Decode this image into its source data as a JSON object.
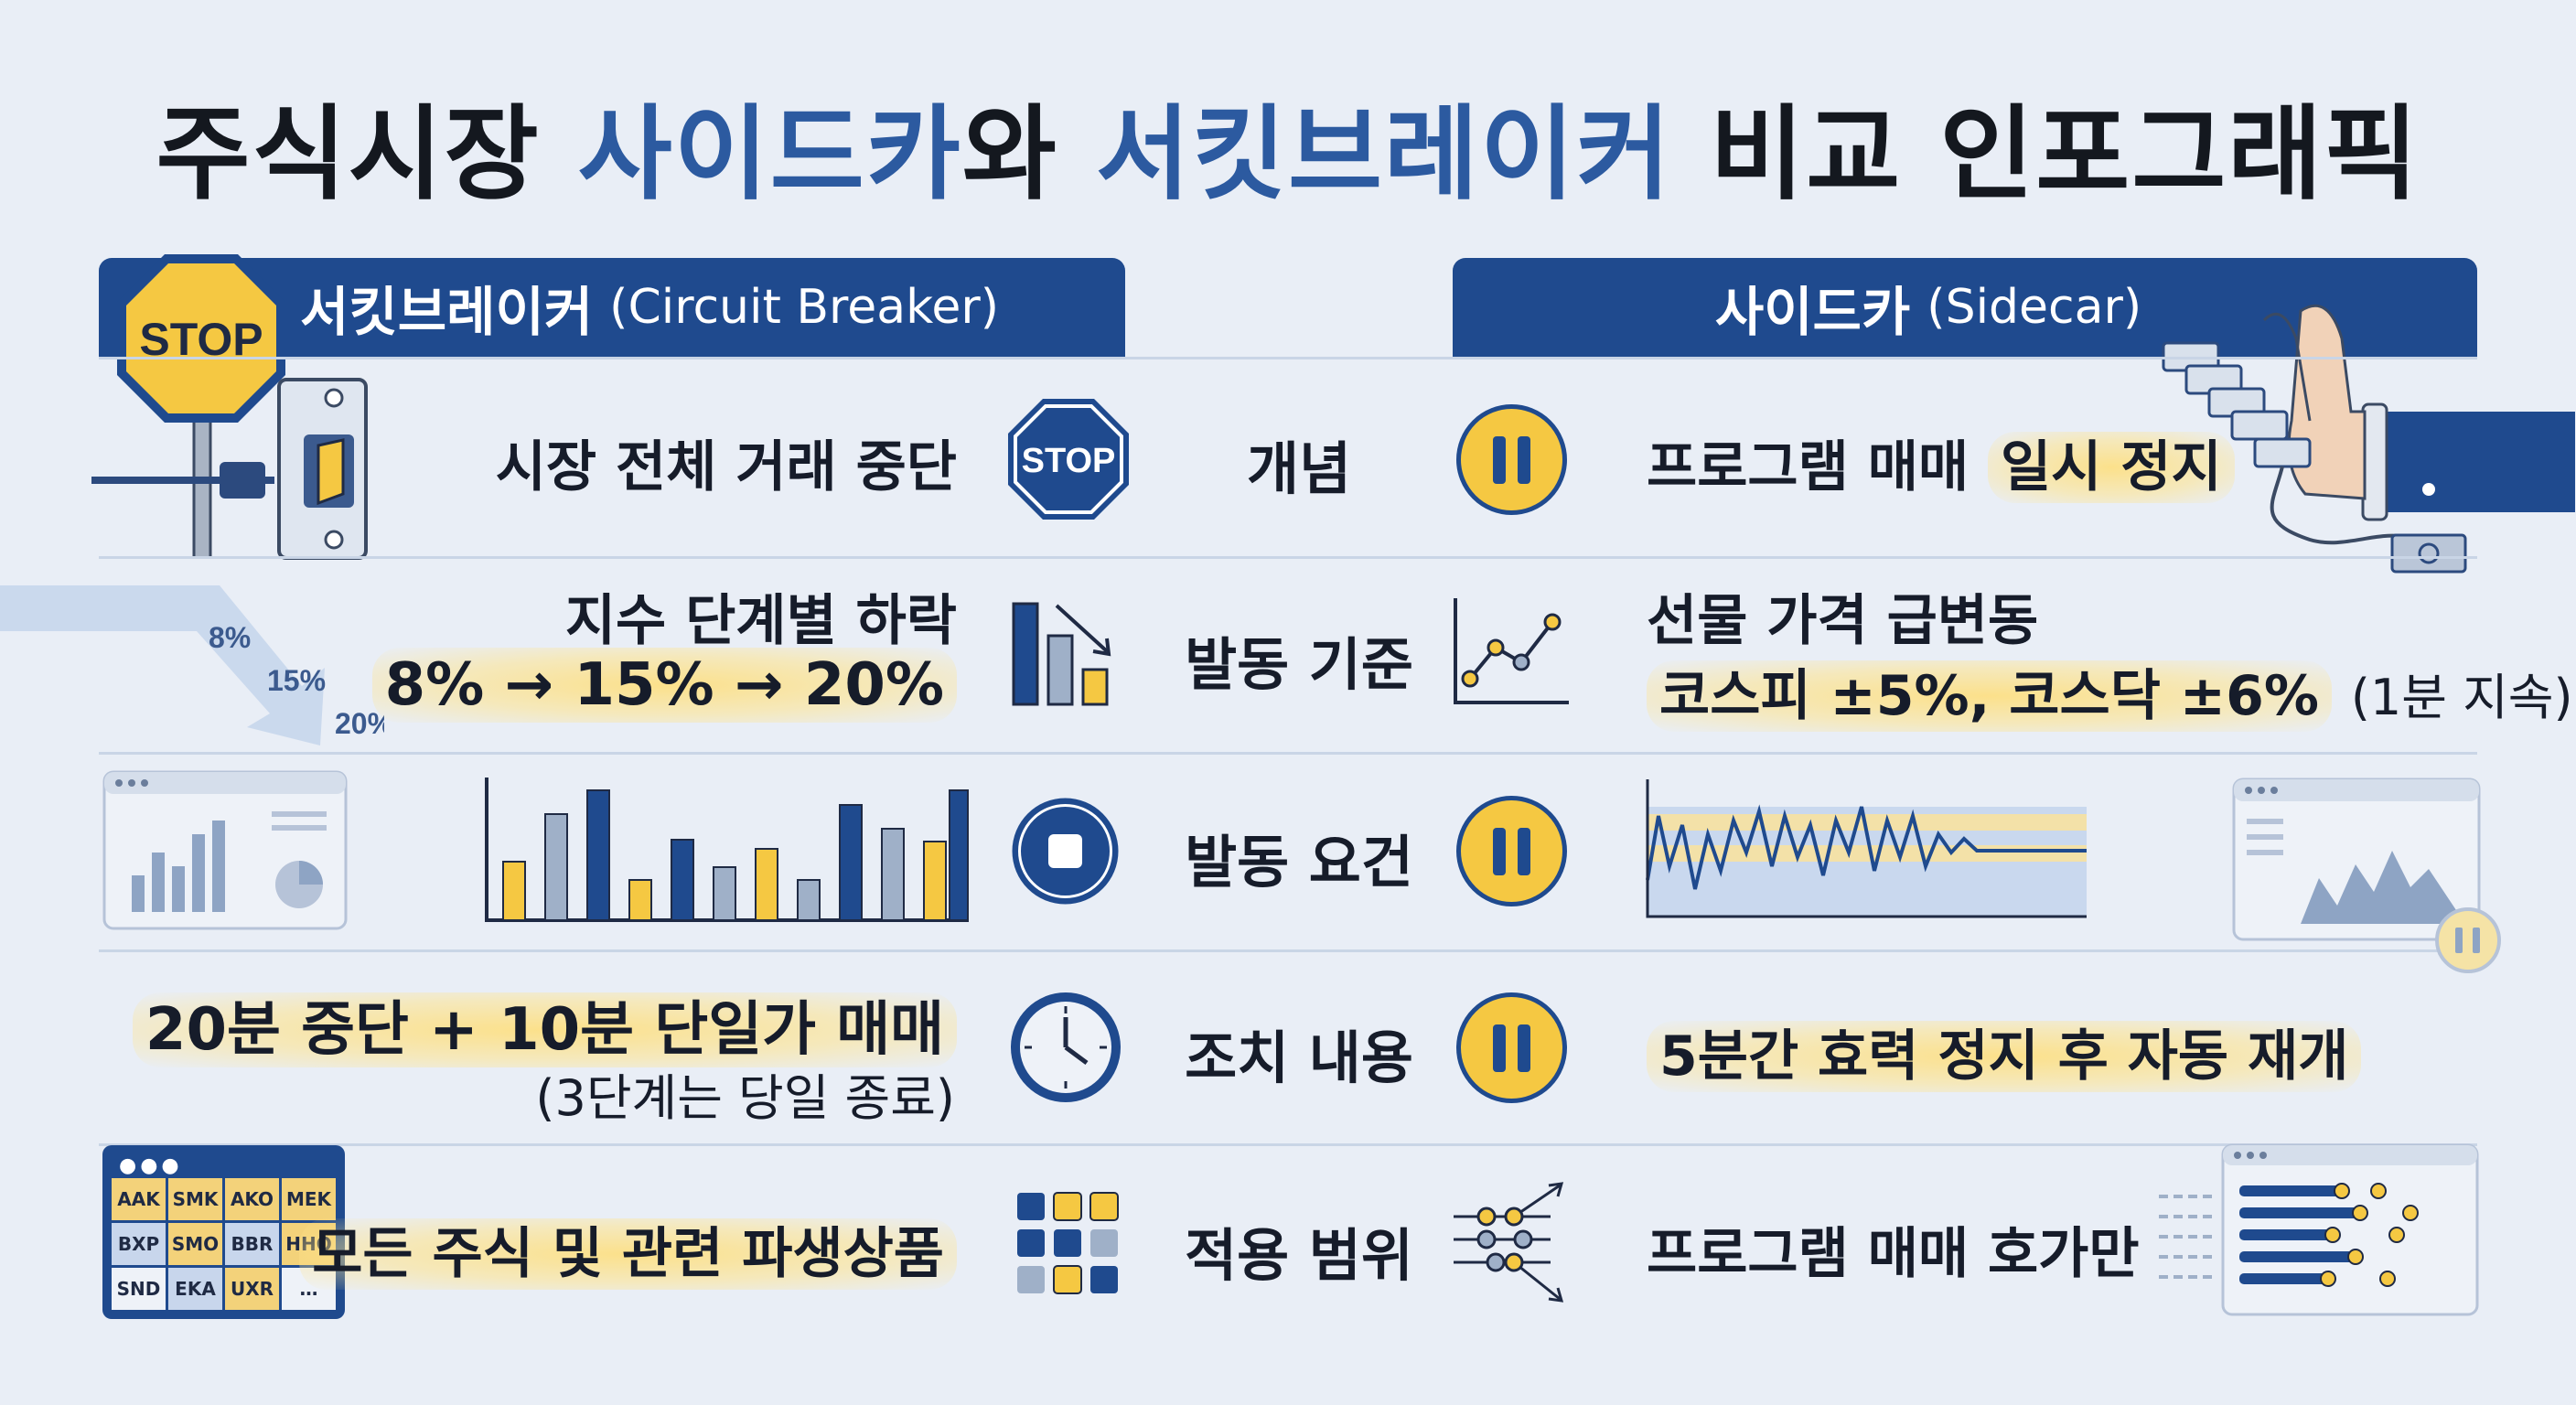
{
  "title": {
    "part1": "주식시장 ",
    "part2": "사이드카",
    "part3": "와 ",
    "part4": "서킷브레이커",
    "part5": " 비교 인포그래픽"
  },
  "left_header": {
    "name": "서킷브레이커",
    "sub": "(Circuit Breaker)",
    "stop_sign": "STOP"
  },
  "right_header": {
    "name": "사이드카",
    "sub": "(Sidecar)"
  },
  "categories": [
    "개념",
    "발동 기준",
    "발동 요건",
    "조치 내용",
    "적용 범위"
  ],
  "circuit_breaker": {
    "concept": "시장 전체 거래 중단",
    "criteria_title": "지수 단계별 하락",
    "criteria_steps": "8% → 15% → 20%",
    "arrow_labels": [
      "8%",
      "15%",
      "20%"
    ],
    "action_main": "20분 중단 + 10분 단일가 매매",
    "action_sub": "(3단계는 당일 종료)",
    "scope": "모든 주식 및 관련 파생상품",
    "ticker_table": [
      "AAK",
      "SMK",
      "AKO",
      "MEK",
      "BXP",
      "SMO",
      "BBR",
      "HHO",
      "SND",
      "EKA",
      "UXR",
      "…"
    ],
    "stop_icon_text": "STOP"
  },
  "sidecar": {
    "concept_part1": "프로그램 매매 ",
    "concept_part2": "일시 정지",
    "criteria_title": "선물 가격 급변동",
    "criteria_detail": "코스피 ±5%, 코스닥 ±6%",
    "criteria_note": "(1분 지속)",
    "action": "5분간 효력 정지 후 자동 재개",
    "scope": "프로그램 매매 호가만"
  },
  "colors": {
    "navy": "#1f4a8e",
    "blue": "#2c5aa0",
    "yellow": "#f5c842",
    "gray": "#9fb0c8",
    "background": "#e9eef6"
  }
}
